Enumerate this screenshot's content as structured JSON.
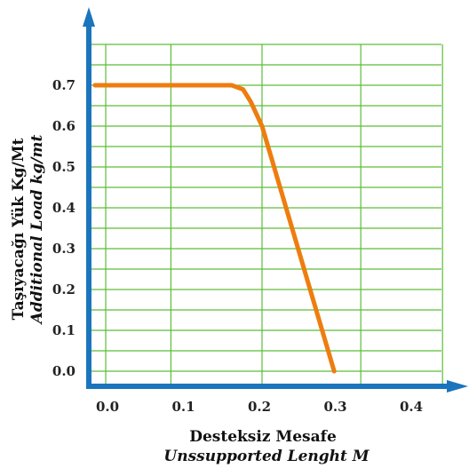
{
  "chart_data": {
    "type": "line",
    "xlabel": "Desteksiz Mesafe",
    "xlabel_en": "Unssupported Lenght M",
    "ylabel": "Taşıyacağı Yük Kg/Mt",
    "ylabel_en": "Additional Load kg/mt",
    "x_ticks": [
      "0.0",
      "0.1",
      "0.2",
      "0.3",
      "0.4"
    ],
    "y_ticks": [
      "0.0",
      "0.1",
      "0.2",
      "0.3",
      "0.4",
      "0.5",
      "0.6",
      "0.7"
    ],
    "xlim": [
      -0.02,
      0.44
    ],
    "ylim": [
      0.0,
      0.78
    ],
    "grid": true,
    "series": [
      {
        "color": "#ee7d10",
        "x": [
          -0.02,
          0.16,
          0.175,
          0.185,
          0.2,
          0.295
        ],
        "y": [
          0.7,
          0.7,
          0.69,
          0.66,
          0.6,
          0.0
        ]
      }
    ],
    "colors": {
      "axis": "#1b75bd",
      "grid": "#5cbd38",
      "line": "#ee7d10"
    }
  }
}
